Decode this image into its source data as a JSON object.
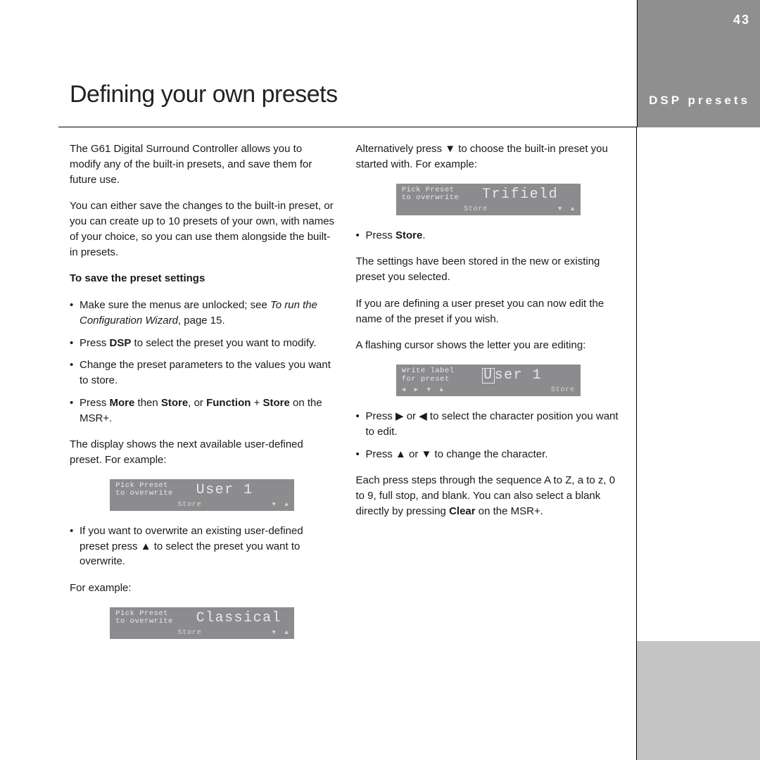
{
  "meta": {
    "page_number": "43",
    "section_label": "DSP presets",
    "title": "Defining your own presets"
  },
  "colors": {
    "sidebar_bg": "#8f8f90",
    "sidebar_lower_bg": "#c4c4c5",
    "lcd_bg": "#8c8c8e",
    "lcd_text": "#e8e8ea",
    "body_text": "#1a1a1a",
    "rule": "#000000"
  },
  "left_col": {
    "intro1": "The G61 Digital Surround Controller allows you to modify any of the built-in presets, and save them for future use.",
    "intro2": "You can either save the changes to the built-in preset, or you can create up to 10 presets of your own, with names of your choice, so you can use them alongside the built-in presets.",
    "subhead": "To save the preset settings",
    "b1_pre": "Make sure the menus are unlocked; see ",
    "b1_ital": "To run the Configuration Wizard",
    "b1_post": ", page 15.",
    "b2_pre": "Press ",
    "b2_bold": "DSP",
    "b2_post": " to select the preset you want to modify.",
    "b3": "Change the preset parameters to the values you want to store.",
    "b4_pre": "Press ",
    "b4_b1": "More",
    "b4_mid1": " then ",
    "b4_b2": "Store",
    "b4_mid2": ", or ",
    "b4_b3": "Function",
    "b4_mid3": " + ",
    "b4_b4": "Store",
    "b4_post": " on the MSR+.",
    "after1": "The display shows the next available user-defined preset. For example:",
    "b5": "If you want to overwrite an existing user-defined preset press ▲ to select the preset you want to overwrite.",
    "after2": "For example:"
  },
  "right_col": {
    "p1": "Alternatively press ▼ to choose the built-in preset you started with. For example:",
    "b1_pre": "Press ",
    "b1_bold": "Store",
    "b1_post": ".",
    "p2": "The settings have been stored in the new or existing preset you selected.",
    "p3": "If you are defining a user preset you can now edit the name of the preset if you wish.",
    "p4": "A flashing cursor shows the letter you are editing:",
    "b2": "Press ▶ or ◀ to select the character position you want to edit.",
    "b3": "Press ▲ or ▼ to change the character.",
    "p5_pre": "Each press steps through the sequence A to Z, a to z, 0 to 9, full stop, and blank. You can also select a blank directly by pressing ",
    "p5_bold": "Clear",
    "p5_post": " on the MSR+."
  },
  "lcd1": {
    "line1": "Pick Preset",
    "line2": "to overwrite",
    "value": "User 1",
    "foot_left": "Store"
  },
  "lcd2": {
    "line1": "Pick Preset",
    "line2": "to overwrite",
    "value": "Classical",
    "foot_left": "Store"
  },
  "lcd3": {
    "line1": "Pick Preset",
    "line2": "to overwrite",
    "value": "Trifield",
    "foot_left": "Store"
  },
  "lcd4": {
    "line1": "Write label",
    "line2": "for preset",
    "cursor": "U",
    "rest": "ser 1",
    "foot_right": "Store"
  }
}
